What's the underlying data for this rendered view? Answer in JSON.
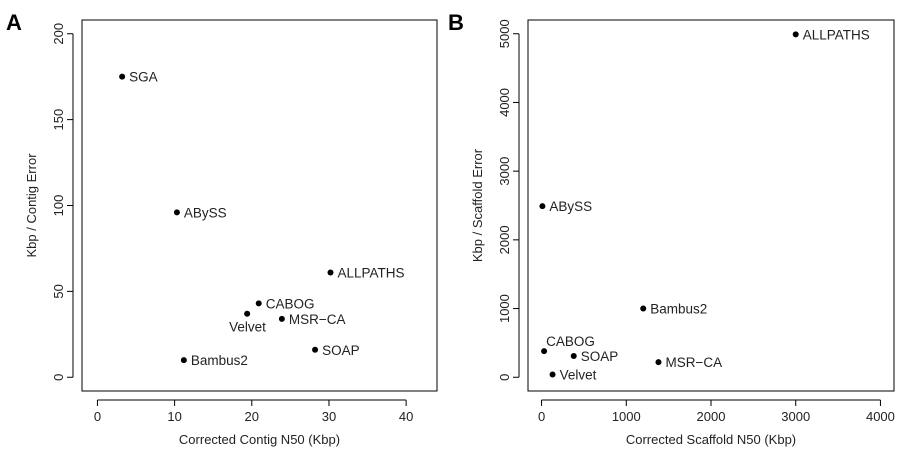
{
  "chart_data": [
    {
      "type": "scatter",
      "panel_label": "A",
      "xlabel": "Corrected Contig N50 (Kbp)",
      "ylabel": "Kbp / Contig Error",
      "xlim": [
        -2,
        44
      ],
      "ylim": [
        -8,
        208
      ],
      "xticks": [
        0,
        10,
        20,
        30,
        40
      ],
      "yticks": [
        0,
        50,
        100,
        150,
        200
      ],
      "grid": false,
      "points": [
        {
          "label": "SGA",
          "x": 3.2,
          "y": 175,
          "label_pos": "right"
        },
        {
          "label": "ABySS",
          "x": 10.3,
          "y": 96,
          "label_pos": "right"
        },
        {
          "label": "ALLPATHS",
          "x": 30.2,
          "y": 61,
          "label_pos": "right"
        },
        {
          "label": "CABOG",
          "x": 20.9,
          "y": 43,
          "label_pos": "right"
        },
        {
          "label": "Velvet",
          "x": 19.4,
          "y": 37,
          "label_pos": "below-left"
        },
        {
          "label": "MSR−CA",
          "x": 23.9,
          "y": 34,
          "label_pos": "right"
        },
        {
          "label": "SOAP",
          "x": 28.2,
          "y": 16,
          "label_pos": "right"
        },
        {
          "label": "Bambus2",
          "x": 11.2,
          "y": 10,
          "label_pos": "right"
        }
      ]
    },
    {
      "type": "scatter",
      "panel_label": "B",
      "xlabel": "Corrected Scaffold N50 (Kbp)",
      "ylabel": "Kbp / Scaffold Error",
      "xlim": [
        -160,
        4160
      ],
      "ylim": [
        -200,
        5200
      ],
      "xticks": [
        0,
        1000,
        2000,
        3000,
        4000
      ],
      "yticks": [
        0,
        1000,
        2000,
        3000,
        4000,
        5000
      ],
      "grid": false,
      "points": [
        {
          "label": "ALLPATHS",
          "x": 3000,
          "y": 4990,
          "label_pos": "right"
        },
        {
          "label": "ABySS",
          "x": 10,
          "y": 2490,
          "label_pos": "right"
        },
        {
          "label": "Bambus2",
          "x": 1200,
          "y": 1000,
          "label_pos": "right"
        },
        {
          "label": "CABOG",
          "x": 30,
          "y": 380,
          "label_pos": "above-right"
        },
        {
          "label": "SOAP",
          "x": 380,
          "y": 310,
          "label_pos": "right"
        },
        {
          "label": "MSR−CA",
          "x": 1380,
          "y": 220,
          "label_pos": "right"
        },
        {
          "label": "Velvet",
          "x": 130,
          "y": 40,
          "label_pos": "right"
        }
      ]
    }
  ]
}
